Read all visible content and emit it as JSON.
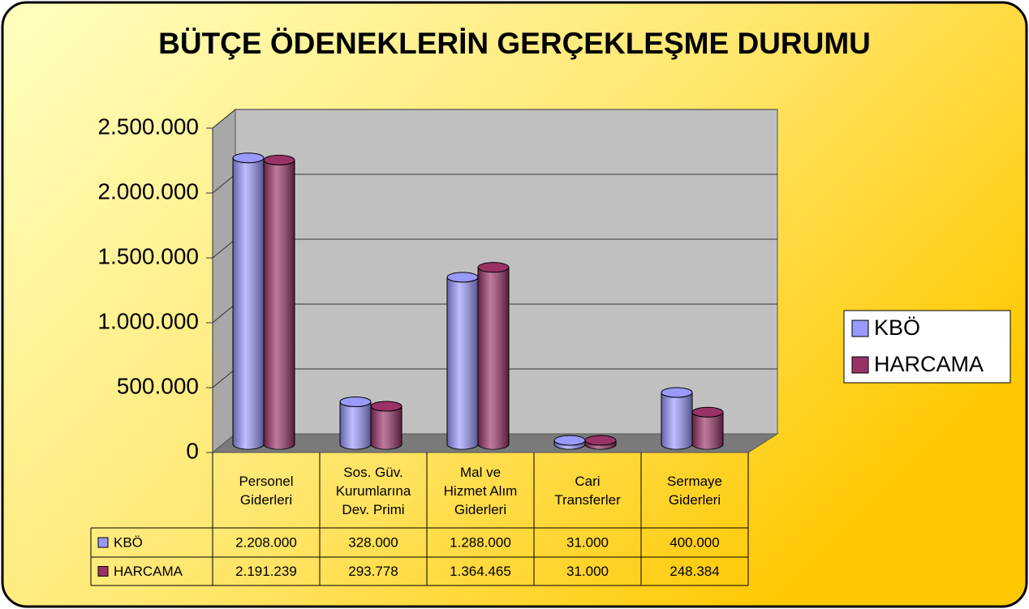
{
  "chart_data": {
    "type": "bar",
    "title": "BÜTÇE ÖDENEKLERİN GERÇEKLEŞME DURUMU",
    "categories": [
      "Personel\nGiderleri",
      "Sos. Güv.\nKurumlarına\nDev. Primi",
      "Mal ve\nHizmet Alım\nGiderleri",
      "Cari\nTransferler",
      "Sermaye\nGiderleri"
    ],
    "series": [
      {
        "name": "KBÖ",
        "color": "#9999ff",
        "values": [
          2208000,
          328000,
          1288000,
          31000,
          400000
        ],
        "value_labels": [
          "2.208.000",
          "328.000",
          "1.288.000",
          "31.000",
          "400.000"
        ]
      },
      {
        "name": "HARCAMA",
        "color": "#993366",
        "values": [
          2191239,
          293778,
          1364465,
          31000,
          248384
        ],
        "value_labels": [
          "2.191.239",
          "293.778",
          "1.364.465",
          "31.000",
          "248.384"
        ]
      }
    ],
    "ylim": [
      0,
      2500000
    ],
    "yticks": [
      0,
      {
        "value": 500000,
        "label": "500.000"
      },
      {
        "value": 1000000,
        "label": "1.000.000"
      },
      {
        "value": 1500000,
        "label": "1.500.000"
      },
      {
        "value": 2000000,
        "label": "2.000.000"
      },
      {
        "value": 2500000,
        "label": "2.500.000"
      }
    ],
    "grid": true,
    "legend": "right"
  }
}
